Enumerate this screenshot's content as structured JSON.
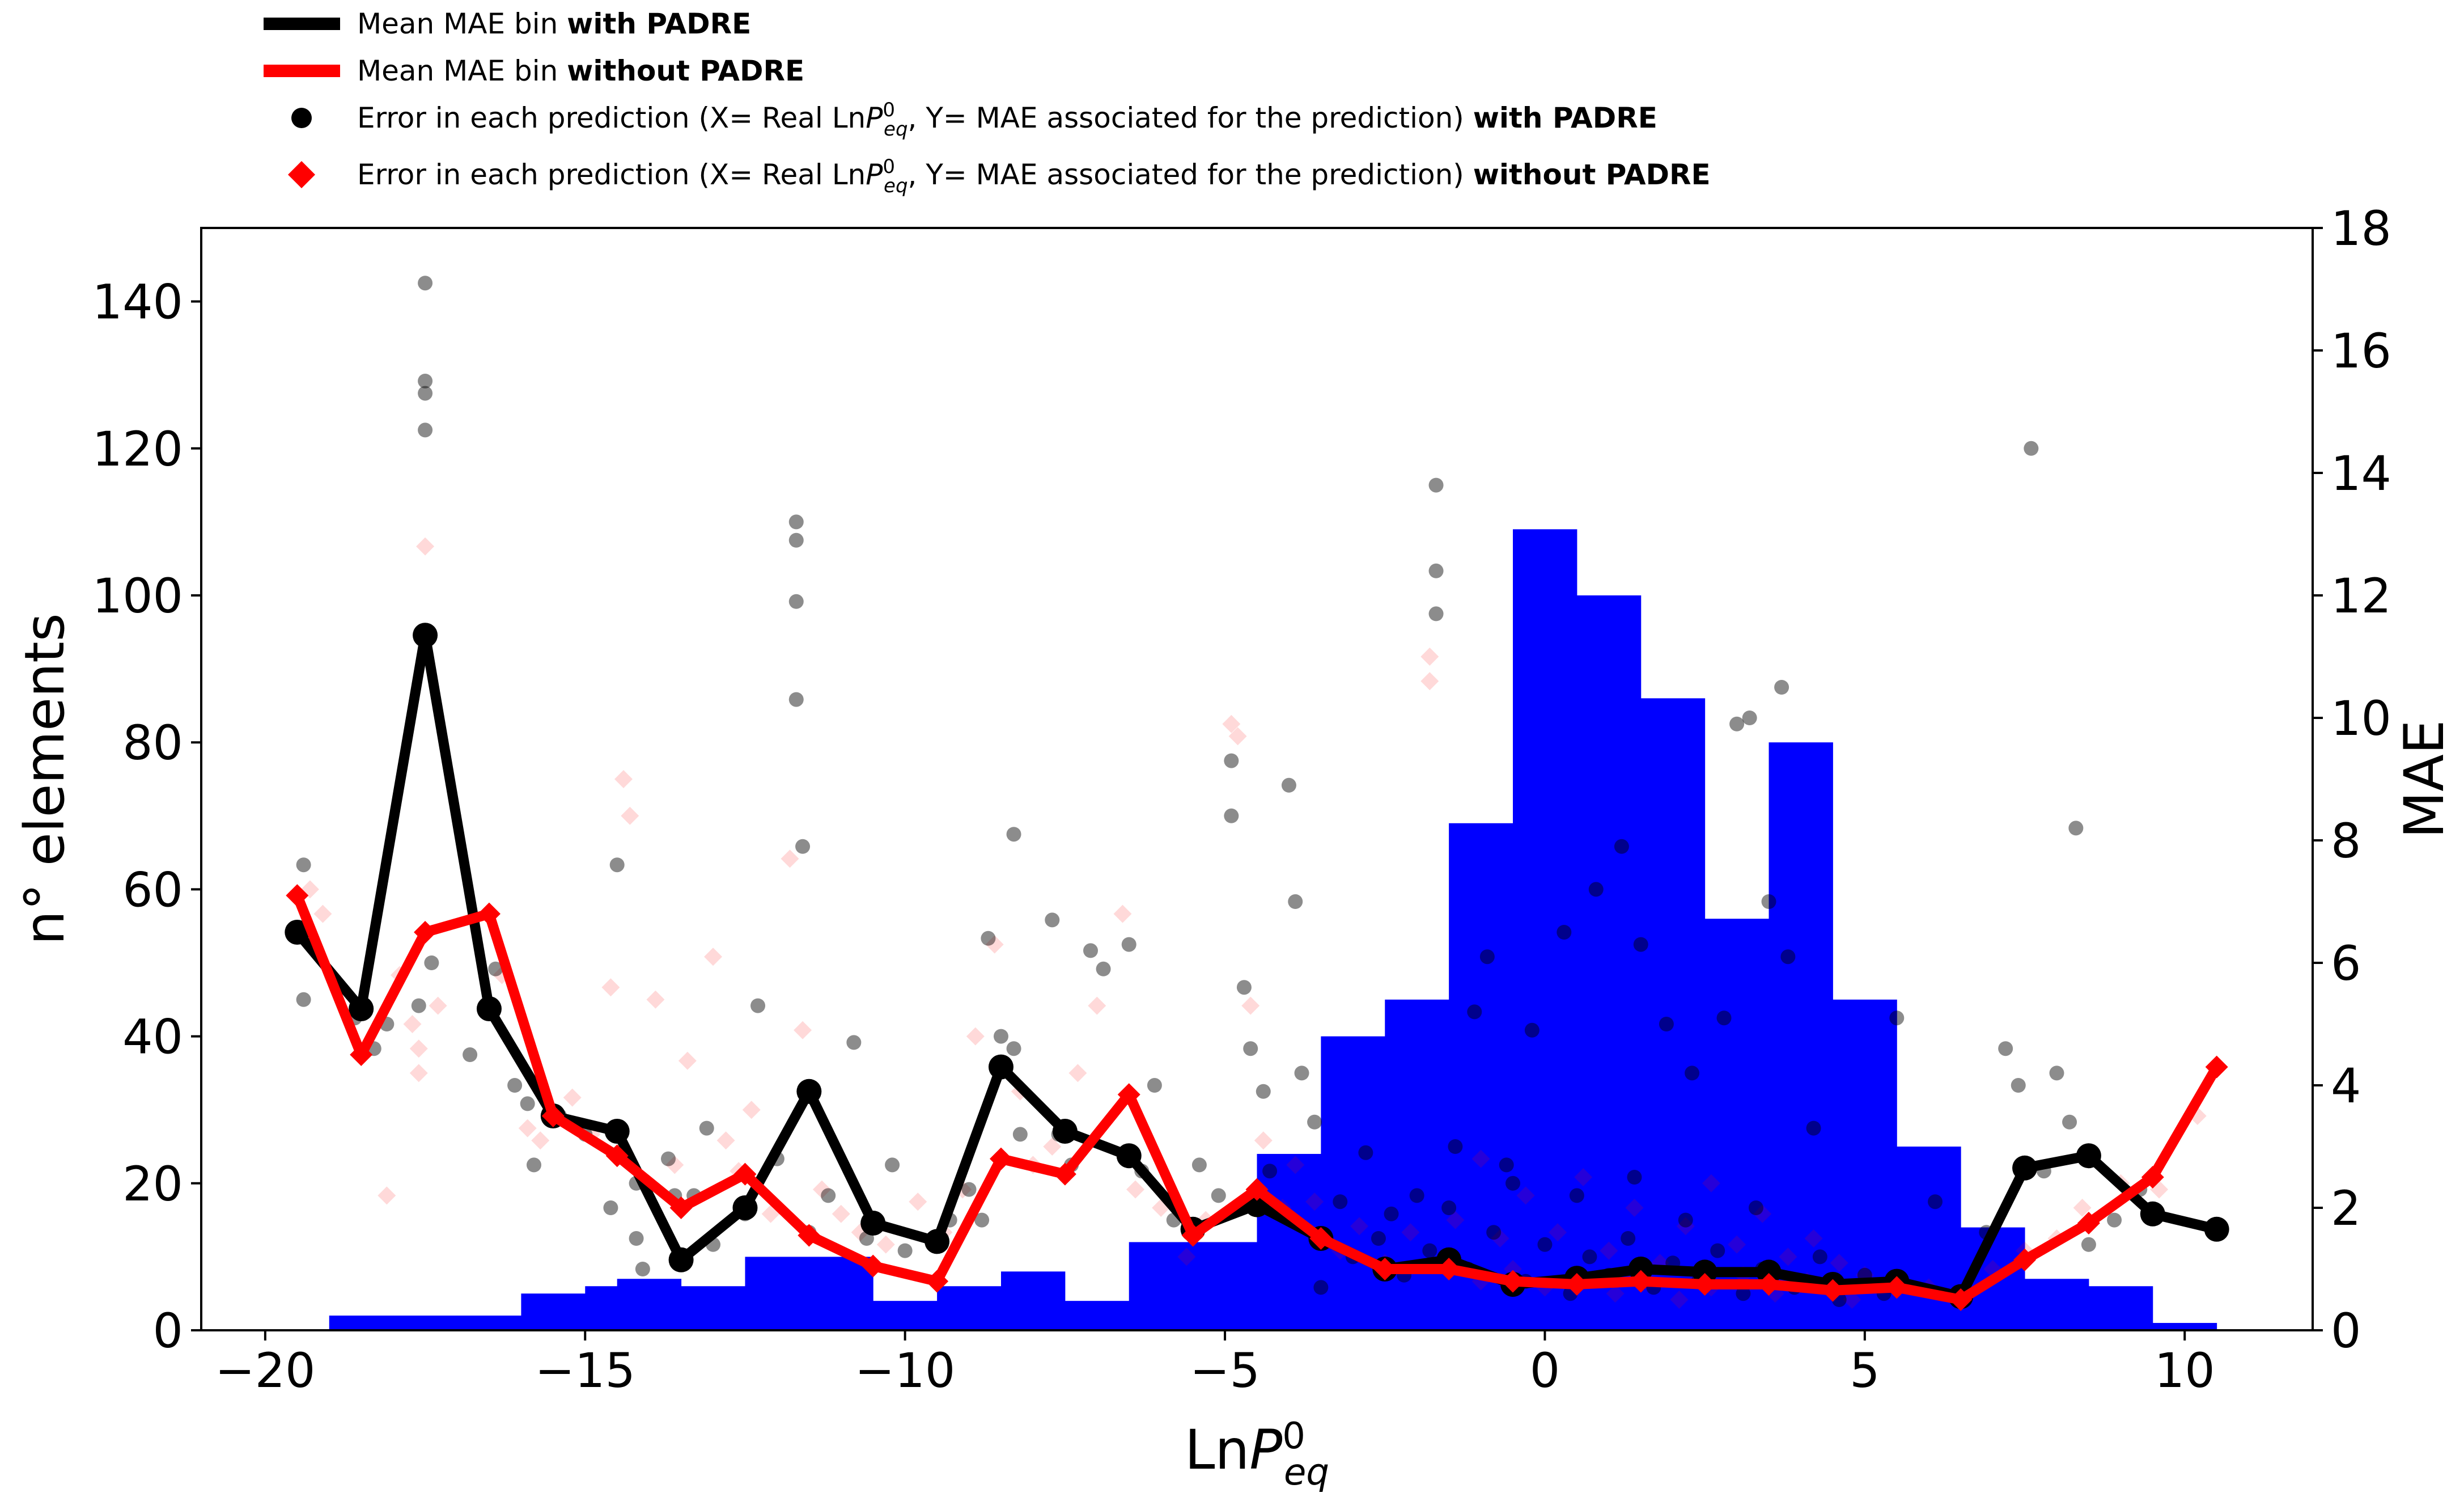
{
  "chart_data": {
    "type": "histogram+line+scatter",
    "xlabel": {
      "base": "Ln",
      "var": "P",
      "sup": "0",
      "sub": "eq"
    },
    "ylabel_left": "n° elements",
    "ylabel_right": "MAE",
    "xlim": [
      -21,
      12
    ],
    "ylim_left": [
      0,
      150
    ],
    "ylim_right": [
      0,
      18
    ],
    "x_ticks": [
      -20,
      -15,
      -10,
      -5,
      0,
      5,
      10
    ],
    "x_tick_labels": [
      "−20",
      "−15",
      "−10",
      "−5",
      "0",
      "5",
      "10"
    ],
    "y_left_ticks": [
      0,
      20,
      40,
      60,
      80,
      100,
      120,
      140
    ],
    "y_left_tick_labels": [
      "0",
      "20",
      "40",
      "60",
      "80",
      "100",
      "120",
      "140"
    ],
    "y_right_ticks": [
      0,
      2,
      4,
      6,
      8,
      10,
      12,
      14,
      16,
      18
    ],
    "y_right_tick_labels": [
      "0",
      "2",
      "4",
      "6",
      "8",
      "10",
      "12",
      "14",
      "16",
      "18"
    ],
    "grid": false,
    "legend_position": "top-left-outside",
    "colors": {
      "histogram": "#0000ff",
      "with_padre": "#000000",
      "without_padre": "#ff0000"
    },
    "histogram": {
      "name": "",
      "bin_edges": [
        -19,
        -18,
        -17,
        -16,
        -15,
        -14.5,
        -13.5,
        -12.5,
        -11.5,
        -10.5,
        -9.5,
        -8.5,
        -7.5,
        -6.5,
        -5.5,
        -4.5,
        -3.5,
        -2.5,
        -1.5,
        -0.5,
        0.5,
        1.5,
        2.5,
        3.5,
        4.5,
        5.5,
        6.5,
        7.5,
        8.5,
        9.5,
        10.5
      ],
      "counts": [
        2,
        2,
        2,
        5,
        6,
        7,
        6,
        10,
        10,
        4,
        6,
        8,
        4,
        12,
        12,
        24,
        40,
        45,
        69,
        109,
        100,
        86,
        56,
        80,
        45,
        25,
        14,
        7,
        6,
        1
      ]
    },
    "series": [
      {
        "name": "Mean MAE bin with PADRE",
        "axis": "right",
        "x": [
          -19.5,
          -18.5,
          -17.5,
          -16.5,
          -15.5,
          -14.5,
          -13.5,
          -12.5,
          -11.5,
          -10.5,
          -9.5,
          -8.5,
          -7.5,
          -6.5,
          -5.5,
          -4.5,
          -3.5,
          -2.5,
          -1.5,
          -0.5,
          0.5,
          1.5,
          2.5,
          3.5,
          4.5,
          5.5,
          6.5,
          7.5,
          8.5,
          9.5,
          10.5
        ],
        "y": [
          6.5,
          5.25,
          11.35,
          5.25,
          3.5,
          3.25,
          1.15,
          2.0,
          3.9,
          1.75,
          1.45,
          4.3,
          3.25,
          2.85,
          1.65,
          2.05,
          1.5,
          1.0,
          1.15,
          0.75,
          0.85,
          1.0,
          0.95,
          0.95,
          0.75,
          0.8,
          0.55,
          2.65,
          2.85,
          1.9,
          1.65
        ]
      },
      {
        "name": "Mean MAE bin without PADRE",
        "axis": "right",
        "x": [
          -19.5,
          -18.5,
          -17.5,
          -16.5,
          -15.5,
          -14.5,
          -13.5,
          -12.5,
          -11.5,
          -10.5,
          -9.5,
          -8.5,
          -7.5,
          -6.5,
          -5.5,
          -4.5,
          -3.5,
          -2.5,
          -1.5,
          -0.5,
          0.5,
          1.5,
          2.5,
          3.5,
          4.5,
          5.5,
          6.5,
          7.5,
          8.5,
          9.5,
          10.5
        ],
        "y": [
          7.1,
          4.5,
          6.5,
          6.8,
          3.5,
          2.85,
          2.0,
          2.55,
          1.55,
          1.05,
          0.8,
          2.8,
          2.55,
          3.85,
          1.55,
          2.3,
          1.5,
          1.0,
          1.0,
          0.8,
          0.75,
          0.8,
          0.75,
          0.75,
          0.65,
          0.7,
          0.5,
          1.15,
          1.75,
          2.5,
          4.3
        ]
      },
      {
        "name": "Error in each prediction (X= Real LnP0eq, Y= MAE associated for the prediction) with PADRE",
        "axis": "right",
        "type": "scatter",
        "points": [
          [
            -19.4,
            7.6
          ],
          [
            -19.4,
            5.4
          ],
          [
            -18.6,
            5.1
          ],
          [
            -18.3,
            4.6
          ],
          [
            -18.1,
            5.0
          ],
          [
            -17.5,
            17.1
          ],
          [
            -17.5,
            15.5
          ],
          [
            -17.5,
            15.3
          ],
          [
            -17.5,
            14.7
          ],
          [
            -17.6,
            5.3
          ],
          [
            -17.4,
            6.0
          ],
          [
            -16.8,
            4.5
          ],
          [
            -16.4,
            5.9
          ],
          [
            -16.1,
            4.0
          ],
          [
            -15.9,
            3.7
          ],
          [
            -15.8,
            2.7
          ],
          [
            -15.4,
            3.5
          ],
          [
            -15.0,
            3.2
          ],
          [
            -14.6,
            2.0
          ],
          [
            -14.5,
            7.6
          ],
          [
            -14.2,
            2.4
          ],
          [
            -14.2,
            1.5
          ],
          [
            -14.1,
            1.0
          ],
          [
            -13.7,
            2.8
          ],
          [
            -13.6,
            2.2
          ],
          [
            -13.3,
            2.2
          ],
          [
            -13.1,
            3.3
          ],
          [
            -13.0,
            1.4
          ],
          [
            -12.5,
            1.9
          ],
          [
            -12.3,
            5.3
          ],
          [
            -12.0,
            2.8
          ],
          [
            -11.7,
            13.2
          ],
          [
            -11.7,
            12.9
          ],
          [
            -11.7,
            11.9
          ],
          [
            -11.7,
            10.3
          ],
          [
            -11.6,
            7.9
          ],
          [
            -11.5,
            1.6
          ],
          [
            -11.2,
            2.2
          ],
          [
            -10.8,
            4.7
          ],
          [
            -10.6,
            1.5
          ],
          [
            -10.2,
            2.7
          ],
          [
            -10.0,
            1.3
          ],
          [
            -9.3,
            1.8
          ],
          [
            -9.0,
            2.3
          ],
          [
            -8.8,
            1.8
          ],
          [
            -8.7,
            6.4
          ],
          [
            -8.5,
            4.8
          ],
          [
            -8.3,
            8.1
          ],
          [
            -8.3,
            4.6
          ],
          [
            -8.2,
            3.2
          ],
          [
            -7.7,
            6.7
          ],
          [
            -7.6,
            3.2
          ],
          [
            -7.4,
            2.7
          ],
          [
            -7.1,
            6.2
          ],
          [
            -6.9,
            5.9
          ],
          [
            -6.5,
            6.3
          ],
          [
            -6.3,
            2.6
          ],
          [
            -6.1,
            4.0
          ],
          [
            -5.8,
            1.8
          ],
          [
            -5.4,
            2.7
          ],
          [
            -5.1,
            2.2
          ],
          [
            -4.9,
            9.3
          ],
          [
            -4.9,
            8.4
          ],
          [
            -4.7,
            5.6
          ],
          [
            -4.6,
            4.6
          ],
          [
            -4.4,
            3.9
          ],
          [
            -4.3,
            2.6
          ],
          [
            -4.0,
            8.9
          ],
          [
            -3.9,
            7.0
          ],
          [
            -3.8,
            4.2
          ],
          [
            -3.6,
            3.4
          ],
          [
            -3.2,
            2.1
          ],
          [
            -2.8,
            2.9
          ],
          [
            -2.4,
            1.9
          ],
          [
            -2.0,
            2.2
          ],
          [
            -1.7,
            13.8
          ],
          [
            -1.7,
            12.4
          ],
          [
            -1.7,
            11.7
          ],
          [
            -1.4,
            3.0
          ],
          [
            -1.1,
            5.2
          ],
          [
            -0.9,
            6.1
          ],
          [
            -0.5,
            2.4
          ],
          [
            -0.2,
            4.9
          ],
          [
            0.3,
            6.5
          ],
          [
            0.8,
            7.2
          ],
          [
            1.2,
            7.9
          ],
          [
            1.5,
            6.3
          ],
          [
            1.9,
            5.0
          ],
          [
            2.3,
            4.2
          ],
          [
            2.8,
            5.1
          ],
          [
            3.0,
            9.9
          ],
          [
            3.2,
            10.0
          ],
          [
            3.5,
            7.0
          ],
          [
            3.7,
            10.5
          ],
          [
            3.8,
            6.1
          ],
          [
            4.2,
            3.3
          ],
          [
            5.5,
            5.1
          ],
          [
            6.1,
            2.1
          ],
          [
            6.9,
            1.6
          ],
          [
            7.2,
            4.6
          ],
          [
            7.4,
            4.0
          ],
          [
            7.6,
            14.4
          ],
          [
            7.8,
            2.6
          ],
          [
            8.0,
            4.2
          ],
          [
            8.2,
            3.4
          ],
          [
            8.3,
            8.2
          ],
          [
            8.5,
            1.4
          ],
          [
            8.9,
            1.8
          ],
          [
            9.3,
            2.3
          ],
          [
            -3.0,
            1.2
          ],
          [
            -2.6,
            1.5
          ],
          [
            -2.2,
            0.9
          ],
          [
            -1.8,
            1.3
          ],
          [
            -1.2,
            1.0
          ],
          [
            -0.8,
            1.6
          ],
          [
            -0.3,
            0.8
          ],
          [
            0.0,
            1.4
          ],
          [
            0.4,
            0.6
          ],
          [
            0.7,
            1.2
          ],
          [
            1.0,
            0.9
          ],
          [
            1.3,
            1.5
          ],
          [
            1.7,
            0.7
          ],
          [
            2.0,
            1.1
          ],
          [
            2.4,
            0.8
          ],
          [
            2.7,
            1.3
          ],
          [
            3.1,
            0.6
          ],
          [
            3.4,
            1.0
          ],
          [
            3.9,
            0.7
          ],
          [
            4.3,
            1.2
          ],
          [
            4.6,
            0.5
          ],
          [
            5.0,
            0.9
          ],
          [
            -1.5,
            2.0
          ],
          [
            -0.6,
            2.7
          ],
          [
            0.5,
            2.2
          ],
          [
            1.4,
            2.5
          ],
          [
            2.2,
            1.8
          ],
          [
            3.3,
            2.0
          ],
          [
            -3.5,
            0.7
          ],
          [
            5.3,
            0.6
          ]
        ]
      },
      {
        "name": "Error in each prediction (X= Real LnP0eq, Y= MAE associated for the prediction) without PADRE",
        "axis": "right",
        "type": "scatter",
        "points": [
          [
            -19.3,
            7.2
          ],
          [
            -19.1,
            6.8
          ],
          [
            -18.1,
            2.2
          ],
          [
            -17.9,
            5.8
          ],
          [
            -17.7,
            5.0
          ],
          [
            -17.5,
            12.8
          ],
          [
            -17.6,
            4.2
          ],
          [
            -17.6,
            4.6
          ],
          [
            -17.3,
            5.3
          ],
          [
            -16.3,
            5.8
          ],
          [
            -15.9,
            3.3
          ],
          [
            -15.7,
            3.1
          ],
          [
            -15.2,
            3.8
          ],
          [
            -14.9,
            3.2
          ],
          [
            -14.6,
            5.6
          ],
          [
            -14.4,
            9.0
          ],
          [
            -14.3,
            8.4
          ],
          [
            -13.9,
            5.4
          ],
          [
            -13.6,
            2.7
          ],
          [
            -13.4,
            4.4
          ],
          [
            -13.0,
            6.1
          ],
          [
            -12.8,
            3.1
          ],
          [
            -12.6,
            2.6
          ],
          [
            -12.4,
            3.6
          ],
          [
            -12.1,
            1.9
          ],
          [
            -11.8,
            7.7
          ],
          [
            -11.6,
            4.9
          ],
          [
            -11.3,
            2.3
          ],
          [
            -11.0,
            1.9
          ],
          [
            -10.7,
            1.6
          ],
          [
            -10.3,
            1.4
          ],
          [
            -9.8,
            2.1
          ],
          [
            -9.4,
            1.6
          ],
          [
            -9.1,
            2.3
          ],
          [
            -8.9,
            4.8
          ],
          [
            -8.6,
            6.3
          ],
          [
            -8.2,
            3.9
          ],
          [
            -8.0,
            2.7
          ],
          [
            -7.7,
            3.0
          ],
          [
            -7.3,
            4.2
          ],
          [
            -7.0,
            5.3
          ],
          [
            -6.6,
            6.8
          ],
          [
            -6.4,
            2.3
          ],
          [
            -6.0,
            2.0
          ],
          [
            -5.6,
            1.2
          ],
          [
            -5.3,
            1.8
          ],
          [
            -4.9,
            9.9
          ],
          [
            -4.8,
            9.7
          ],
          [
            -4.6,
            5.3
          ],
          [
            -4.4,
            3.1
          ],
          [
            -4.1,
            2.0
          ],
          [
            -3.9,
            2.7
          ],
          [
            -3.6,
            2.1
          ],
          [
            -3.2,
            1.3
          ],
          [
            -2.9,
            1.7
          ],
          [
            -2.5,
            1.1
          ],
          [
            -2.1,
            1.6
          ],
          [
            -1.8,
            11.0
          ],
          [
            -1.8,
            10.6
          ],
          [
            -1.4,
            1.8
          ],
          [
            -1.0,
            2.8
          ],
          [
            -0.7,
            1.5
          ],
          [
            -0.3,
            2.2
          ],
          [
            0.2,
            1.6
          ],
          [
            0.6,
            2.5
          ],
          [
            1.0,
            1.3
          ],
          [
            1.4,
            2.0
          ],
          [
            1.8,
            1.1
          ],
          [
            2.2,
            1.7
          ],
          [
            2.6,
            2.4
          ],
          [
            3.0,
            1.4
          ],
          [
            3.4,
            1.9
          ],
          [
            3.8,
            1.2
          ],
          [
            4.2,
            1.5
          ],
          [
            4.6,
            1.1
          ],
          [
            5.0,
            0.9
          ],
          [
            5.5,
            0.8
          ],
          [
            6.0,
            0.7
          ],
          [
            6.6,
            0.6
          ],
          [
            7.0,
            1.0
          ],
          [
            7.5,
            1.3
          ],
          [
            8.0,
            1.5
          ],
          [
            8.4,
            2.0
          ],
          [
            9.0,
            2.4
          ],
          [
            9.6,
            2.3
          ],
          [
            10.2,
            3.5
          ],
          [
            -1.0,
            0.8
          ],
          [
            -0.5,
            1.0
          ],
          [
            0.0,
            0.7
          ],
          [
            0.5,
            0.9
          ],
          [
            1.1,
            0.6
          ],
          [
            1.6,
            0.8
          ],
          [
            2.1,
            0.5
          ],
          [
            2.6,
            0.7
          ],
          [
            3.1,
            0.9
          ],
          [
            3.6,
            0.6
          ],
          [
            4.1,
            0.8
          ],
          [
            4.8,
            0.5
          ]
        ]
      }
    ]
  },
  "legend": {
    "items": [
      {
        "kind": "line",
        "color": "#000000",
        "text": "Mean MAE bin ",
        "bold": "with PADRE"
      },
      {
        "kind": "line",
        "color": "#ff0000",
        "text": "Mean MAE bin ",
        "bold": "without PADRE"
      },
      {
        "kind": "circle",
        "color": "#000000",
        "pre": "Error in each prediction (X= Real Ln",
        "var": "P",
        "sup": "0",
        "sub": "eq",
        "post": ", Y= MAE associated for the prediction) ",
        "bold": "with PADRE"
      },
      {
        "kind": "diamond",
        "color": "#ff0000",
        "pre": "Error in each prediction (X= Real Ln",
        "var": "P",
        "sup": "0",
        "sub": "eq",
        "post": ", Y= MAE associated for the prediction) ",
        "bold": "without PADRE"
      }
    ]
  }
}
